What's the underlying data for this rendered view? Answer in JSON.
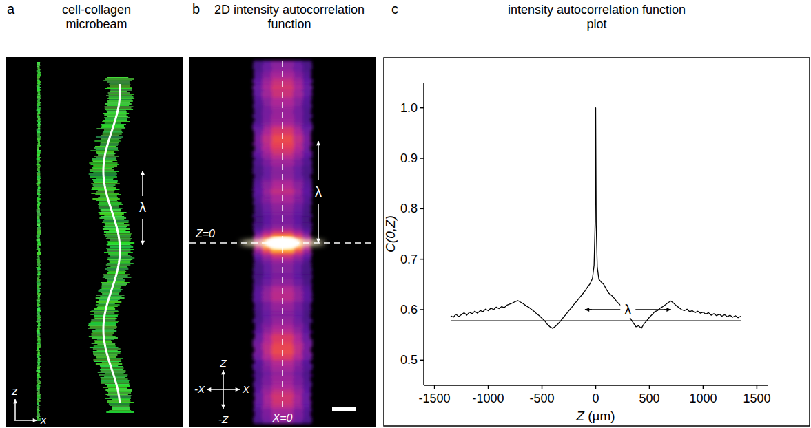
{
  "panel_a": {
    "letter": "a",
    "title": "cell-collagen microbeam",
    "lambda": "λ",
    "axis_z": "z",
    "axis_x": "x"
  },
  "panel_b": {
    "letter": "b",
    "title": "2D intensity autocorrelation function",
    "lambda": "λ",
    "z_zero": "Z=0",
    "x_zero": "X=0",
    "axis_labels": {
      "z_pos": "Z",
      "z_neg": "-Z",
      "x_pos": "X",
      "x_neg": "-X"
    }
  },
  "chart_data": {
    "type": "line",
    "panel_label": "c",
    "title": "intensity autocorrelation function plot",
    "x_label": "Z (µm)",
    "y_label": "C(0,Z)",
    "color": "#000000",
    "grid": false,
    "x": [
      -1350,
      -1325,
      -1300,
      -1275,
      -1250,
      -1225,
      -1200,
      -1175,
      -1150,
      -1125,
      -1100,
      -1075,
      -1050,
      -1025,
      -1000,
      -975,
      -950,
      -925,
      -900,
      -875,
      -850,
      -825,
      -800,
      -775,
      -750,
      -725,
      -700,
      -675,
      -650,
      -625,
      -600,
      -575,
      -550,
      -525,
      -500,
      -475,
      -450,
      -425,
      -400,
      -375,
      -350,
      -325,
      -300,
      -275,
      -250,
      -225,
      -200,
      -175,
      -150,
      -125,
      -100,
      -75,
      -50,
      -30,
      -15,
      -5,
      0,
      5,
      15,
      30,
      50,
      75,
      100,
      125,
      150,
      175,
      200,
      225,
      250,
      275,
      300,
      325,
      350,
      375,
      400,
      425,
      450,
      475,
      500,
      525,
      550,
      575,
      600,
      625,
      650,
      675,
      700,
      725,
      750,
      775,
      800,
      825,
      850,
      875,
      900,
      925,
      950,
      975,
      1000,
      1025,
      1050,
      1075,
      1100,
      1125,
      1150,
      1175,
      1200,
      1225,
      1250,
      1275,
      1300,
      1325,
      1350
    ],
    "values": [
      0.588,
      0.585,
      0.591,
      0.586,
      0.59,
      0.594,
      0.589,
      0.595,
      0.592,
      0.597,
      0.593,
      0.598,
      0.596,
      0.601,
      0.598,
      0.603,
      0.6,
      0.605,
      0.602,
      0.606,
      0.604,
      0.609,
      0.611,
      0.613,
      0.616,
      0.618,
      0.615,
      0.612,
      0.608,
      0.605,
      0.601,
      0.597,
      0.592,
      0.588,
      0.583,
      0.578,
      0.571,
      0.566,
      0.563,
      0.567,
      0.572,
      0.578,
      0.585,
      0.591,
      0.598,
      0.604,
      0.611,
      0.617,
      0.624,
      0.63,
      0.637,
      0.645,
      0.652,
      0.662,
      0.688,
      0.775,
      1.0,
      0.768,
      0.684,
      0.66,
      0.655,
      0.65,
      0.64,
      0.632,
      0.628,
      0.622,
      0.615,
      0.61,
      0.604,
      0.598,
      0.59,
      0.582,
      0.574,
      0.566,
      0.568,
      0.563,
      0.572,
      0.578,
      0.585,
      0.59,
      0.596,
      0.598,
      0.603,
      0.606,
      0.61,
      0.614,
      0.617,
      0.613,
      0.608,
      0.604,
      0.6,
      0.598,
      0.601,
      0.596,
      0.598,
      0.594,
      0.597,
      0.593,
      0.595,
      0.591,
      0.594,
      0.589,
      0.592,
      0.588,
      0.591,
      0.587,
      0.59,
      0.586,
      0.589,
      0.585,
      0.588,
      0.584,
      0.587
    ],
    "xlim": [
      -1600,
      1600
    ],
    "ylim": [
      0.45,
      1.05
    ],
    "xticks": [
      -1500,
      -1000,
      -500,
      0,
      500,
      1000,
      1500
    ],
    "yticks": [
      0.5,
      0.6,
      0.7,
      0.8,
      0.9,
      {
        "value": 1,
        "label": "1.0"
      }
    ],
    "hline": {
      "value": 0.578,
      "x": [
        -1350,
        1350
      ]
    },
    "annotations": [
      {
        "text": "λ",
        "x": [
          -100,
          700
        ],
        "y": 0.6
      }
    ]
  }
}
